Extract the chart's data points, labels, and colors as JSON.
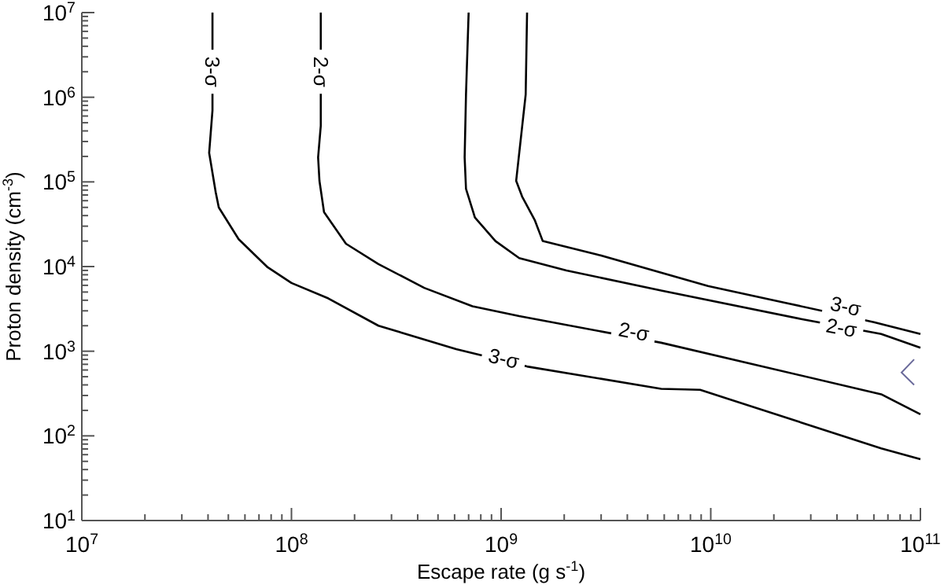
{
  "chart_data": {
    "type": "line",
    "log": "xy",
    "xlabel": "Escape rate (g s$^{-1}$)",
    "ylabel": "Proton density (cm$^{-3}$)",
    "xlim": [
      10000000.0,
      100000000000.0
    ],
    "xticks": [
      {
        "value": 10000000.0,
        "label": "10$^{7}$"
      },
      {
        "value": 20000000.0,
        "label": null
      },
      {
        "value": 30000000.0,
        "label": null
      },
      {
        "value": 40000000.0,
        "label": null
      },
      {
        "value": 50000000.0,
        "label": null
      },
      {
        "value": 60000000.0,
        "label": null
      },
      {
        "value": 70000000.0,
        "label": null
      },
      {
        "value": 80000000.0,
        "label": null
      },
      {
        "value": 90000000.0,
        "label": null
      },
      {
        "value": 100000000.0,
        "label": "10$^{8}$"
      },
      {
        "value": 200000000.0,
        "label": null
      },
      {
        "value": 300000000.0,
        "label": null
      },
      {
        "value": 400000000.0,
        "label": null
      },
      {
        "value": 500000000.0,
        "label": null
      },
      {
        "value": 600000000.0,
        "label": null
      },
      {
        "value": 700000000.0,
        "label": null
      },
      {
        "value": 800000000.0,
        "label": null
      },
      {
        "value": 900000000.0,
        "label": null
      },
      {
        "value": 1000000000.0,
        "label": "10$^{9}$"
      },
      {
        "value": 2000000000.0,
        "label": null
      },
      {
        "value": 3000000000.0,
        "label": null
      },
      {
        "value": 4000000000.0,
        "label": null
      },
      {
        "value": 5000000000.0,
        "label": null
      },
      {
        "value": 6000000000.0,
        "label": null
      },
      {
        "value": 7000000000.0,
        "label": null
      },
      {
        "value": 8000000000.0,
        "label": null
      },
      {
        "value": 9000000000.0,
        "label": null
      },
      {
        "value": 10000000000.0,
        "label": "10$^{10}$"
      },
      {
        "value": 20000000000.0,
        "label": null
      },
      {
        "value": 30000000000.0,
        "label": null
      },
      {
        "value": 40000000000.0,
        "label": null
      },
      {
        "value": 50000000000.0,
        "label": null
      },
      {
        "value": 60000000000.0,
        "label": null
      },
      {
        "value": 70000000000.0,
        "label": null
      },
      {
        "value": 80000000000.0,
        "label": null
      },
      {
        "value": 90000000000.0,
        "label": null
      },
      {
        "value": 100000000000.0,
        "label": "10$^{11}$"
      }
    ],
    "ylim": [
      10,
      10000000.0
    ],
    "yticks": [
      {
        "value": 10,
        "label": "10$^{1}$"
      },
      {
        "value": 20,
        "label": null
      },
      {
        "value": 30,
        "label": null
      },
      {
        "value": 40,
        "label": null
      },
      {
        "value": 50,
        "label": null
      },
      {
        "value": 60,
        "label": null
      },
      {
        "value": 70,
        "label": null
      },
      {
        "value": 80,
        "label": null
      },
      {
        "value": 90,
        "label": null
      },
      {
        "value": 100,
        "label": "10$^{2}$"
      },
      {
        "value": 200,
        "label": null
      },
      {
        "value": 300,
        "label": null
      },
      {
        "value": 400,
        "label": null
      },
      {
        "value": 500,
        "label": null
      },
      {
        "value": 600,
        "label": null
      },
      {
        "value": 700,
        "label": null
      },
      {
        "value": 800,
        "label": null
      },
      {
        "value": 900,
        "label": null
      },
      {
        "value": 1000,
        "label": "10$^{3}$"
      },
      {
        "value": 2000,
        "label": null
      },
      {
        "value": 3000,
        "label": null
      },
      {
        "value": 4000,
        "label": null
      },
      {
        "value": 5000,
        "label": null
      },
      {
        "value": 6000,
        "label": null
      },
      {
        "value": 7000,
        "label": null
      },
      {
        "value": 8000,
        "label": null
      },
      {
        "value": 9000,
        "label": null
      },
      {
        "value": 10000,
        "label": "10$^{4}$"
      },
      {
        "value": 20000,
        "label": null
      },
      {
        "value": 30000,
        "label": null
      },
      {
        "value": 40000,
        "label": null
      },
      {
        "value": 50000,
        "label": null
      },
      {
        "value": 60000,
        "label": null
      },
      {
        "value": 70000,
        "label": null
      },
      {
        "value": 80000,
        "label": null
      },
      {
        "value": 90000,
        "label": null
      },
      {
        "value": 100000,
        "label": "10$^{5}$"
      },
      {
        "value": 200000,
        "label": null
      },
      {
        "value": 300000,
        "label": null
      },
      {
        "value": 400000,
        "label": null
      },
      {
        "value": 500000,
        "label": null
      },
      {
        "value": 600000,
        "label": null
      },
      {
        "value": 700000,
        "label": null
      },
      {
        "value": 800000,
        "label": null
      },
      {
        "value": 900000,
        "label": null
      },
      {
        "value": 1000000,
        "label": "10$^{6}$"
      },
      {
        "value": 2000000,
        "label": null
      },
      {
        "value": 3000000,
        "label": null
      },
      {
        "value": 4000000,
        "label": null
      },
      {
        "value": 5000000,
        "label": null
      },
      {
        "value": 6000000,
        "label": null
      },
      {
        "value": 7000000,
        "label": null
      },
      {
        "value": 8000000,
        "label": null
      },
      {
        "value": 9000000,
        "label": null
      },
      {
        "value": 10000000,
        "label": "10$^{7}$"
      }
    ],
    "series": [
      {
        "color": "#000000",
        "x": [
          42000000.0,
          42000000.0,
          40500000.0,
          43500000.0,
          45000000.0,
          56000000.0,
          77000000.0,
          100000000.0,
          150000000.0,
          260000000.0,
          610000000.0,
          1330000000.0,
          5800000000.0,
          8900000000.0,
          65000000000.0,
          100000000000.0
        ],
        "values": [
          10000000.0,
          700000.0,
          220000.0,
          76000.0,
          50000.0,
          21000.0,
          9800.0,
          6400.0,
          4200.0,
          2000.0,
          1060,
          660,
          360,
          350,
          71,
          53
        ]
      },
      {
        "color": "#000000",
        "x": [
          138000000.0,
          138000000.0,
          134000000.0,
          136000000.0,
          143000000.0,
          182000000.0,
          260000000.0,
          430000000.0,
          730000000.0,
          1220000000.0,
          5800000000.0,
          65000000000.0,
          100000000000.0
        ],
        "values": [
          10000000.0,
          460000.0,
          195000.0,
          103000.0,
          44000.0,
          18600.0,
          10700.0,
          5600,
          3400,
          2600,
          1260,
          310,
          180
        ]
      },
      {
        "color": "#000000",
        "x": [
          700000000.0,
          680000000.0,
          670000000.0,
          680000000.0,
          750000000.0,
          940000000.0,
          1220000000.0,
          2050000000.0,
          5800000000.0,
          27000000000.0,
          65000000000.0,
          100000000000.0
        ],
        "values": [
          10000000.0,
          1080000.0,
          195000.0,
          83000.0,
          38000.0,
          20000.0,
          12600.0,
          9000,
          5200,
          2400,
          1600,
          1100
        ]
      },
      {
        "color": "#000000",
        "x": [
          1330000000.0,
          1310000000.0,
          1180000000.0,
          1260000000.0,
          1450000000.0,
          1580000000.0,
          2900000000.0,
          9700000000.0,
          23000000000.0,
          60000000000.0,
          100000000000.0
        ],
        "values": [
          10000000.0,
          1080000.0,
          103000.0,
          67000.0,
          35000.0,
          20000.0,
          13800.0,
          5900,
          3700,
          2200,
          1600
        ]
      }
    ],
    "annotations": [
      {
        "text": "3-σ",
        "x": 42000000.0,
        "y": 2000000.0
      },
      {
        "text": "2-σ",
        "x": 138000000.0,
        "y": 2000000.0
      },
      {
        "text": "3-σ",
        "x": 1030000000.0,
        "y": 820
      },
      {
        "text": "2-σ",
        "x": 4300000000.0,
        "y": 1700
      },
      {
        "text": "2-σ",
        "x": 42000000000.0,
        "y": 1900
      },
      {
        "text": "3-σ",
        "x": 44000000000.0,
        "y": 3400
      }
    ]
  }
}
